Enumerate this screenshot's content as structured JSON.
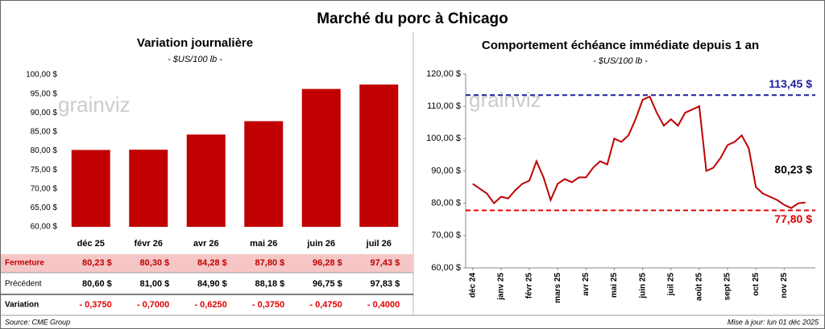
{
  "title": "Marché du porc à Chicago",
  "watermark": "grainviz",
  "source": "Source: CME Group",
  "updated": "Mise à jour: lun 01 déc 2025",
  "chart_data": [
    {
      "type": "bar",
      "title": "Variation journalière",
      "subtitle": "- $US/100 lb -",
      "categories": [
        "déc 25",
        "févr 26",
        "avr 26",
        "mai 26",
        "juin 26",
        "juil 26"
      ],
      "values": [
        80.23,
        80.3,
        84.28,
        87.8,
        96.28,
        97.43
      ],
      "value_labels": [
        "80,23 $",
        "80,30 $",
        "84,28 $",
        "87,80 $",
        "96,28 $",
        "97,43 $"
      ],
      "color": "#c00000",
      "ylim": [
        60,
        100
      ],
      "yticks": [
        {
          "value": 60,
          "label": "60,00 $"
        },
        {
          "value": 65,
          "label": "65,00 $"
        },
        {
          "value": 70,
          "label": "70,00 $"
        },
        {
          "value": 75,
          "label": "75,00 $"
        },
        {
          "value": 80,
          "label": "80,00 $"
        },
        {
          "value": 85,
          "label": "85,00 $"
        },
        {
          "value": 90,
          "label": "90,00 $"
        },
        {
          "value": 95,
          "label": "95,00 $"
        },
        {
          "value": 100,
          "label": "100,00 $"
        }
      ],
      "grid": false
    },
    {
      "type": "line",
      "title": "Comportement échéance immédiate depuis 1 an",
      "subtitle": "- $US/100 lb -",
      "color": "#c00000",
      "x": [
        0,
        0.25,
        0.5,
        0.75,
        1,
        1.25,
        1.5,
        1.75,
        2,
        2.25,
        2.5,
        2.75,
        3,
        3.25,
        3.5,
        3.75,
        4,
        4.25,
        4.5,
        4.75,
        5,
        5.25,
        5.5,
        5.75,
        6,
        6.25,
        6.5,
        6.75,
        7,
        7.25,
        7.5,
        7.75,
        8,
        8.25,
        8.5,
        8.75,
        9,
        9.25,
        9.5,
        9.75,
        10,
        10.25,
        10.5,
        10.75,
        11,
        11.25,
        11.5,
        11.75
      ],
      "values": [
        86,
        84.5,
        83,
        80,
        82,
        81.5,
        84,
        86,
        87,
        93,
        88,
        81,
        86,
        87.5,
        86.5,
        88,
        88,
        91,
        93,
        92,
        100,
        99,
        101,
        106,
        112,
        113,
        108,
        104,
        106,
        104,
        108,
        109,
        110,
        90,
        91,
        94,
        98,
        99,
        101,
        97,
        85,
        83,
        82,
        81,
        79.5,
        78.5,
        80,
        80.23
      ],
      "last_label": "80,23 $",
      "reference_lines": [
        {
          "value": 113.45,
          "label": "113,45 $",
          "color": "#1f1f9f"
        },
        {
          "value": 77.8,
          "label": "77,80 $",
          "color": "#e00000"
        }
      ],
      "xlim": [
        -0.25,
        12.1
      ],
      "xticks": [
        {
          "value": 0,
          "label": "déc 24"
        },
        {
          "value": 1,
          "label": "janv 25"
        },
        {
          "value": 2,
          "label": "févr 25"
        },
        {
          "value": 3,
          "label": "mars 25"
        },
        {
          "value": 4,
          "label": "avr 25"
        },
        {
          "value": 5,
          "label": "mai 25"
        },
        {
          "value": 6,
          "label": "juin 25"
        },
        {
          "value": 7,
          "label": "juil 25"
        },
        {
          "value": 8,
          "label": "août 25"
        },
        {
          "value": 9,
          "label": "sept 25"
        },
        {
          "value": 10,
          "label": "oct 25"
        },
        {
          "value": 11,
          "label": "nov 25"
        }
      ],
      "ylim": [
        60,
        120
      ],
      "yticks": [
        {
          "value": 60,
          "label": "60,00 $"
        },
        {
          "value": 70,
          "label": "70,00 $"
        },
        {
          "value": 80,
          "label": "80,00 $"
        },
        {
          "value": 90,
          "label": "90,00 $"
        },
        {
          "value": 100,
          "label": "100,00 $"
        },
        {
          "value": 110,
          "label": "110,00 $"
        },
        {
          "value": 120,
          "label": "120,00 $"
        }
      ],
      "grid": false
    }
  ],
  "table": {
    "row_labels": [
      "Fermeture",
      "Précédent",
      "Variation"
    ],
    "previous": [
      "80,60 $",
      "81,00 $",
      "84,90 $",
      "88,18 $",
      "96,75 $",
      "97,83 $"
    ],
    "change": [
      "- 0,3750",
      "- 0,7000",
      "- 0,6250",
      "- 0,3750",
      "- 0,4750",
      "- 0,4000"
    ]
  }
}
